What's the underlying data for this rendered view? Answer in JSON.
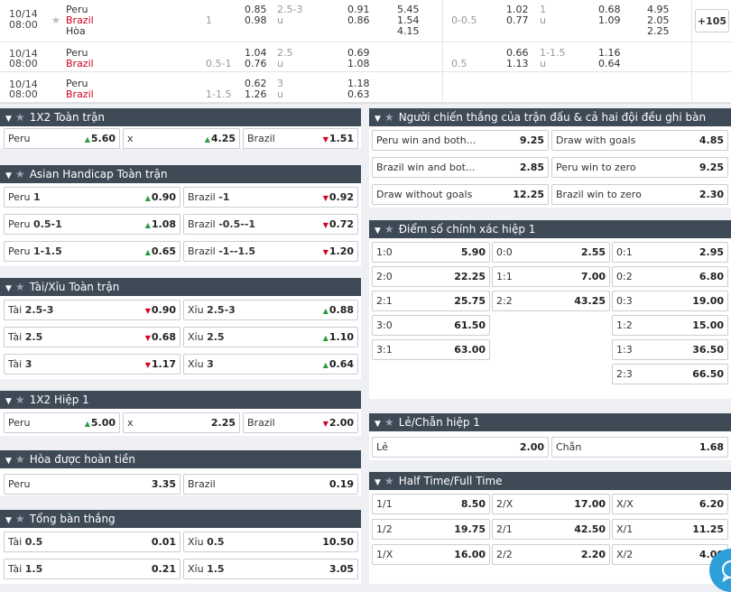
{
  "matches": [
    {
      "date": "10/14",
      "time": "08:00",
      "home": "Peru",
      "away": "Brazil",
      "draw": "Hòa",
      "hdp": "1",
      "ov1": "0.85",
      "ou_line": "2.5-3",
      "ou_u": "u",
      "ov2": "0.98",
      "o1": "0.91",
      "o2": "0.86",
      "x1": "5.45",
      "x2": "1.54",
      "x3": "4.15",
      "h_hdp": "0-0.5",
      "h1": "1.02",
      "h_line": "1",
      "h_u": "u",
      "h2": "0.77",
      "h3": "0.68",
      "h4": "1.09",
      "hx1": "4.95",
      "hx2": "2.05",
      "hx3": "2.25",
      "more": "+105"
    },
    {
      "date": "10/14",
      "time": "08:00",
      "home": "Peru",
      "away": "Brazil",
      "hdp": "0.5-1",
      "ov1": "1.04",
      "ou_line": "2.5",
      "ou_u": "u",
      "ov2": "0.76",
      "o1": "0.69",
      "o2": "1.08",
      "h_hdp": "0.5",
      "h1": "0.66",
      "h_line": "1-1.5",
      "h_u": "u",
      "h2": "1.13",
      "h3": "1.16",
      "h4": "0.64"
    },
    {
      "date": "10/14",
      "time": "08:00",
      "home": "Peru",
      "away": "Brazil",
      "hdp": "1-1.5",
      "ov1": "0.62",
      "ou_line": "3",
      "ou_u": "u",
      "ov2": "1.26",
      "o1": "1.18",
      "o2": "0.63"
    }
  ],
  "p1x2": {
    "title": "1X2 Toàn trận",
    "c": [
      {
        "l": "Peru",
        "v": "5.60",
        "d": "up"
      },
      {
        "l": "x",
        "v": "4.25",
        "d": "up"
      },
      {
        "l": "Brazil",
        "v": "1.51",
        "d": "dn"
      }
    ]
  },
  "pah": {
    "title": "Asian Handicap Toàn trận",
    "rows": [
      [
        {
          "l": "Peru",
          "b": "1",
          "v": "0.90",
          "d": "up"
        },
        {
          "l": "Brazil",
          "b": "-1",
          "v": "0.92",
          "d": "dn"
        }
      ],
      [
        {
          "l": "Peru",
          "b": "0.5-1",
          "v": "1.08",
          "d": "up"
        },
        {
          "l": "Brazil",
          "b": "-0.5--1",
          "v": "0.72",
          "d": "dn"
        }
      ],
      [
        {
          "l": "Peru",
          "b": "1-1.5",
          "v": "0.65",
          "d": "up"
        },
        {
          "l": "Brazil",
          "b": "-1--1.5",
          "v": "1.20",
          "d": "dn"
        }
      ]
    ]
  },
  "pou": {
    "title": "Tài/Xỉu Toàn trận",
    "rows": [
      [
        {
          "l": "Tài",
          "b": "2.5-3",
          "v": "0.90",
          "d": "dn"
        },
        {
          "l": "Xỉu",
          "b": "2.5-3",
          "v": "0.88",
          "d": "up"
        }
      ],
      [
        {
          "l": "Tài",
          "b": "2.5",
          "v": "0.68",
          "d": "dn"
        },
        {
          "l": "Xỉu",
          "b": "2.5",
          "v": "1.10",
          "d": "up"
        }
      ],
      [
        {
          "l": "Tài",
          "b": "3",
          "v": "1.17",
          "d": "dn"
        },
        {
          "l": "Xỉu",
          "b": "3",
          "v": "0.64",
          "d": "up"
        }
      ]
    ]
  },
  "ph1": {
    "title": "1X2 Hiệp 1",
    "c": [
      {
        "l": "Peru",
        "v": "5.00",
        "d": "up"
      },
      {
        "l": "x",
        "v": "2.25"
      },
      {
        "l": "Brazil",
        "v": "2.00",
        "d": "dn"
      }
    ]
  },
  "pdnb": {
    "title": "Hòa được hoàn tiền",
    "c": [
      {
        "l": "Peru",
        "v": "3.35"
      },
      {
        "l": "Brazil",
        "v": "0.19"
      }
    ]
  },
  "ptg": {
    "title": "Tổng bàn thắng",
    "rows": [
      [
        {
          "l": "Tài",
          "b": "0.5",
          "v": "0.01"
        },
        {
          "l": "Xỉu",
          "b": "0.5",
          "v": "10.50"
        }
      ],
      [
        {
          "l": "Tài",
          "b": "1.5",
          "v": "0.21"
        },
        {
          "l": "Xỉu",
          "b": "1.5",
          "v": "3.05"
        }
      ]
    ]
  },
  "pwin": {
    "title": "Người chiến thắng của trận đấu & cả hai đội đều ghi bàn",
    "rows": [
      [
        {
          "l": "Peru win and both...",
          "v": "9.25"
        },
        {
          "l": "Draw with goals",
          "v": "4.85"
        }
      ],
      [
        {
          "l": "Brazil win and bot...",
          "v": "2.85"
        },
        {
          "l": "Peru win to zero",
          "v": "9.25"
        }
      ],
      [
        {
          "l": "Draw without goals",
          "v": "12.25"
        },
        {
          "l": "Brazil win to zero",
          "v": "2.30"
        }
      ]
    ]
  },
  "pcs": {
    "title": "Điểm số chính xác hiệp 1",
    "cols": [
      [
        {
          "l": "1:0",
          "v": "5.90"
        },
        {
          "l": "2:0",
          "v": "22.25"
        },
        {
          "l": "2:1",
          "v": "25.75"
        },
        {
          "l": "3:0",
          "v": "61.50"
        },
        {
          "l": "3:1",
          "v": "63.00"
        }
      ],
      [
        {
          "l": "0:0",
          "v": "2.55"
        },
        {
          "l": "1:1",
          "v": "7.00"
        },
        {
          "l": "2:2",
          "v": "43.25"
        }
      ],
      [
        {
          "l": "0:1",
          "v": "2.95"
        },
        {
          "l": "0:2",
          "v": "6.80"
        },
        {
          "l": "0:3",
          "v": "19.00"
        },
        {
          "l": "1:2",
          "v": "15.00"
        },
        {
          "l": "1:3",
          "v": "36.50"
        },
        {
          "l": "2:3",
          "v": "66.50"
        }
      ]
    ]
  },
  "poe": {
    "title": "Lẻ/Chẵn hiệp 1",
    "c": [
      {
        "l": "Lẻ",
        "v": "2.00"
      },
      {
        "l": "Chẵn",
        "v": "1.68"
      }
    ]
  },
  "phtft": {
    "title": "Half Time/Full Time",
    "cols": [
      [
        {
          "l": "1/1",
          "v": "8.50"
        },
        {
          "l": "1/2",
          "v": "19.75"
        },
        {
          "l": "1/X",
          "v": "16.00"
        }
      ],
      [
        {
          "l": "2/X",
          "v": "17.00"
        },
        {
          "l": "2/1",
          "v": "42.50"
        },
        {
          "l": "2/2",
          "v": "2.20"
        }
      ],
      [
        {
          "l": "X/X",
          "v": "6.20"
        },
        {
          "l": "X/1",
          "v": "11.25"
        },
        {
          "l": "X/2",
          "v": "4.00"
        }
      ]
    ]
  }
}
